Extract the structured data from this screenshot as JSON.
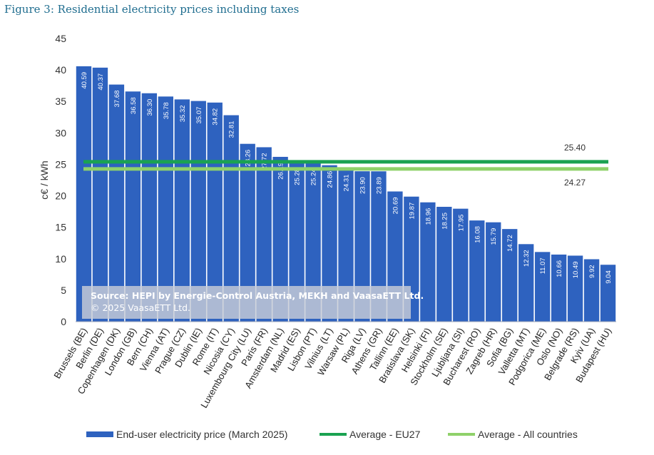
{
  "figure_title": "Figure 3: Residential electricity prices including taxes",
  "source_line1": "Source: HEPI by Energie-Control Austria, MEKH and VaasaETT Ltd.",
  "source_line2": "© 2025 VaasaETT Ltd.",
  "colors": {
    "bar": "#2e62bf",
    "avg_eu27": "#1aa251",
    "avg_all": "#8fd16a",
    "title": "#1f6d8f"
  },
  "chart_data": {
    "type": "bar",
    "title": "Figure 3: Residential electricity prices including taxes",
    "ylabel": "c€ / kWh",
    "xlabel": "",
    "ylim": [
      0,
      45
    ],
    "yticks": [
      0,
      5,
      10,
      15,
      20,
      25,
      30,
      35,
      40,
      45
    ],
    "grid": false,
    "legend_position": "bottom",
    "categories": [
      "Brussels (BE)",
      "Berlin (DE)",
      "Copenhagen (DK)",
      "London (GB)",
      "Bern (CH)",
      "Vienna (AT)",
      "Prague (CZ)",
      "Dublin (IE)",
      "Rome (IT)",
      "Nicosia (CY)",
      "Luxembourg City (LU)",
      "Paris (FR)",
      "Amsterdam (NL)",
      "Madrid (ES)",
      "Lisbon (PT)",
      "Vilnius (LT)",
      "Warsaw (PL)",
      "Riga (LV)",
      "Athens (GR)",
      "Tallinn (EE)",
      "Bratislava (SK)",
      "Helsinki (FI)",
      "Stockholm (SE)",
      "Ljubljana (SI)",
      "Bucharest (RO)",
      "Zagreb (HR)",
      "Sofia (BG)",
      "Valletta (MT)",
      "Podgorica (ME)",
      "Oslo (NO)",
      "Belgrade (RS)",
      "Kyiv (UA)",
      "Budapest (HU)"
    ],
    "series": [
      {
        "name": "End-user electricity price (March 2025)",
        "values": [
          40.59,
          40.37,
          37.68,
          36.58,
          36.3,
          35.78,
          35.32,
          35.07,
          34.82,
          32.81,
          28.26,
          27.72,
          26.19,
          25.28,
          25.24,
          24.86,
          24.31,
          23.9,
          23.89,
          20.69,
          19.87,
          18.96,
          18.25,
          17.95,
          16.08,
          15.79,
          14.72,
          12.32,
          11.07,
          10.66,
          10.49,
          9.92,
          9.04
        ],
        "labels": [
          "40.59",
          "40.37",
          "37.68",
          "36.58",
          "36.30",
          "35.78",
          "35.32",
          "35.07",
          "34.82",
          "32.81",
          "28.26",
          "27.72",
          "26.19",
          "25.28",
          "25.24",
          "24.86",
          "24.31",
          "23.90",
          "23.89",
          "20.69",
          "19.87",
          "18.96",
          "18.25",
          "17.95",
          "16.08",
          "15.79",
          "14.72",
          "12.32",
          "11.07",
          "10.66",
          "10.49",
          "9.92",
          "9.04"
        ]
      }
    ],
    "reference_lines": [
      {
        "name": "Average - EU27",
        "value": 25.4,
        "label": "25.40"
      },
      {
        "name": "Average - All countries",
        "value": 24.27,
        "label": "24.27"
      }
    ]
  }
}
